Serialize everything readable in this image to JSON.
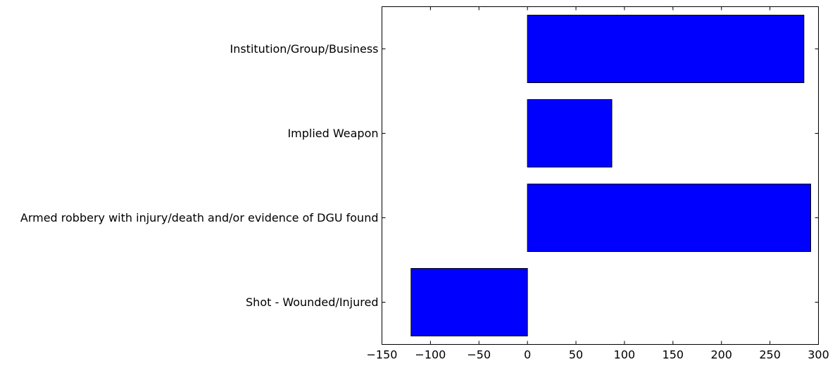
{
  "chart_data": {
    "type": "bar",
    "orientation": "horizontal",
    "categories": [
      "Shot - Wounded/Injured",
      "Armed robbery with injury/death and/or evidence of DGU found",
      "Implied Weapon",
      "Institution/Group/Business"
    ],
    "values": [
      -120,
      292,
      87,
      285
    ],
    "xlim": [
      -150,
      300
    ],
    "xticks": [
      -150,
      -100,
      -50,
      0,
      50,
      100,
      150,
      200,
      250,
      300
    ],
    "xtick_labels": [
      "−150",
      "−100",
      "−50",
      "0",
      "50",
      "100",
      "150",
      "200",
      "250",
      "300"
    ],
    "title": "",
    "xlabel": "",
    "ylabel": "",
    "grid": false,
    "legend": "none",
    "bar_color": "#0000ff",
    "edge_color": "#000000"
  }
}
